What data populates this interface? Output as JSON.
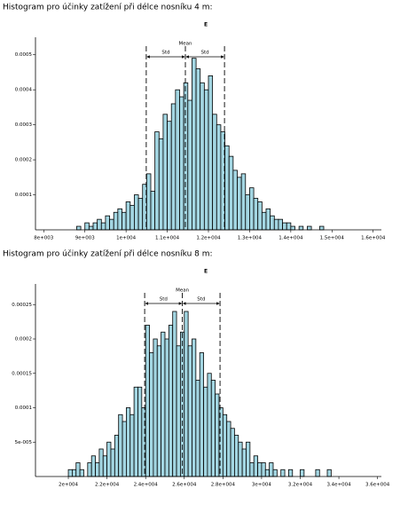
{
  "chart_data": [
    {
      "type": "histogram",
      "heading": "Histogram pro účinky zatížení při délce nosníku 4 m:",
      "title": "E",
      "color": "#a3d6e2",
      "bins": [
        8700,
        8800,
        8900,
        9000,
        9100,
        9200,
        9300,
        9400,
        9500,
        9600,
        9700,
        9800,
        9900,
        10000,
        10100,
        10200,
        10300,
        10400,
        10500,
        10600,
        10700,
        10800,
        10900,
        11000,
        11100,
        11200,
        11300,
        11400,
        11500,
        11600,
        11700,
        11800,
        11900,
        12000,
        12100,
        12200,
        12300,
        12400,
        12500,
        12600,
        12700,
        12800,
        12900,
        13000,
        13100,
        13200,
        13300,
        13400,
        13500,
        13600,
        13700,
        13800,
        13900,
        14000,
        14100,
        14200,
        14300,
        14400,
        14500,
        14600,
        14700,
        14800
      ],
      "values": [
        0,
        1e-05,
        0,
        2e-05,
        1e-05,
        2e-05,
        3e-05,
        2e-05,
        4e-05,
        3e-05,
        5e-05,
        6e-05,
        5e-05,
        8e-05,
        7e-05,
        0.0001,
        9e-05,
        0.00013,
        0.00016,
        0.00011,
        0.00028,
        0.00026,
        0.00033,
        0.00031,
        0.00036,
        0.0004,
        0.00038,
        0.00042,
        0.00037,
        0.00049,
        0.00046,
        0.00042,
        0.0004,
        0.00044,
        0.00033,
        0.0003,
        0.00028,
        0.00024,
        0.00021,
        0.00017,
        0.00015,
        0.00016,
        0.0001,
        0.00012,
        9e-05,
        8e-05,
        5e-05,
        6e-05,
        4e-05,
        3e-05,
        3e-05,
        2e-05,
        2e-05,
        1e-05,
        0,
        1e-05,
        0,
        1e-05,
        0,
        0,
        1e-05
      ],
      "mean": 11440,
      "std": 950,
      "annotations": {
        "mean": "Mean",
        "std": "Std"
      },
      "xlim": [
        7800,
        16200
      ],
      "xticks": [
        {
          "value": 8000,
          "label": "8e+003"
        },
        {
          "value": 9000,
          "label": "9e+003"
        },
        {
          "value": 10000,
          "label": "1e+004"
        },
        {
          "value": 11000,
          "label": "1.1e+004"
        },
        {
          "value": 12000,
          "label": "1.2e+004"
        },
        {
          "value": 13000,
          "label": "1.3e+004"
        },
        {
          "value": 14000,
          "label": "1.4e+004"
        },
        {
          "value": 15000,
          "label": "1.5e+004"
        },
        {
          "value": 16000,
          "label": "1.6e+004"
        }
      ],
      "ylim": [
        0,
        0.00055
      ],
      "yticks": [
        0.0001,
        0.0002,
        0.0003,
        0.0004,
        0.0005
      ]
    },
    {
      "type": "histogram",
      "heading": "Histogram pro účinky zatížení při délce nosníku 8 m:",
      "title": "E",
      "color": "#a3d6e2",
      "bins": [
        20000,
        20200,
        20400,
        20600,
        20800,
        21000,
        21200,
        21400,
        21600,
        21800,
        22000,
        22200,
        22400,
        22600,
        22800,
        23000,
        23200,
        23400,
        23600,
        23800,
        24000,
        24200,
        24400,
        24600,
        24800,
        25000,
        25200,
        25400,
        25600,
        25800,
        26000,
        26200,
        26400,
        26600,
        26800,
        27000,
        27200,
        27400,
        27600,
        27800,
        28000,
        28200,
        28400,
        28600,
        28800,
        29000,
        29200,
        29400,
        29600,
        29800,
        30000,
        30200,
        30400,
        30600,
        30800,
        31000,
        31200,
        31400,
        31600,
        31800,
        32000,
        32200,
        32400,
        32600,
        32800,
        33000,
        33200,
        33400,
        33600,
        33800,
        34000
      ],
      "values": [
        1e-05,
        1e-05,
        2e-05,
        1e-05,
        0,
        2e-05,
        3e-05,
        2e-05,
        4e-05,
        3e-05,
        5e-05,
        4e-05,
        6e-05,
        9e-05,
        8e-05,
        0.0001,
        9e-05,
        0.00013,
        0.00013,
        0.0001,
        0.00022,
        0.00018,
        0.0002,
        0.00019,
        0.00021,
        0.0002,
        0.00022,
        0.00024,
        0.00019,
        0.00021,
        0.00024,
        0.00019,
        0.0002,
        0.00014,
        0.00018,
        0.00013,
        0.00015,
        0.00014,
        0.00012,
        0.0001,
        9e-05,
        8e-05,
        7e-05,
        6e-05,
        5e-05,
        4e-05,
        5e-05,
        2e-05,
        3e-05,
        2e-05,
        2e-05,
        1e-05,
        2e-05,
        1e-05,
        0,
        1e-05,
        0,
        1e-05,
        0,
        0,
        1e-05,
        0,
        0,
        0,
        1e-05,
        0,
        0,
        1e-05,
        0,
        0
      ],
      "mean": 25900,
      "std": 1950,
      "annotations": {
        "mean": "Mean",
        "std": "Std"
      },
      "xlim": [
        18300,
        36200
      ],
      "xticks": [
        {
          "value": 20000,
          "label": "2e+004"
        },
        {
          "value": 22000,
          "label": "2.2e+004"
        },
        {
          "value": 24000,
          "label": "2.4e+004"
        },
        {
          "value": 26000,
          "label": "2.6e+004"
        },
        {
          "value": 28000,
          "label": "2.8e+004"
        },
        {
          "value": 30000,
          "label": "3e+004"
        },
        {
          "value": 32000,
          "label": "3.2e+004"
        },
        {
          "value": 34000,
          "label": "3.4e+004"
        },
        {
          "value": 36000,
          "label": "3.6e+004"
        }
      ],
      "ylim": [
        0,
        0.00028
      ],
      "yticks": [
        {
          "value": 5e-05,
          "label": "5e-005"
        },
        0.0001,
        0.00015,
        0.0002,
        0.00025
      ]
    }
  ]
}
